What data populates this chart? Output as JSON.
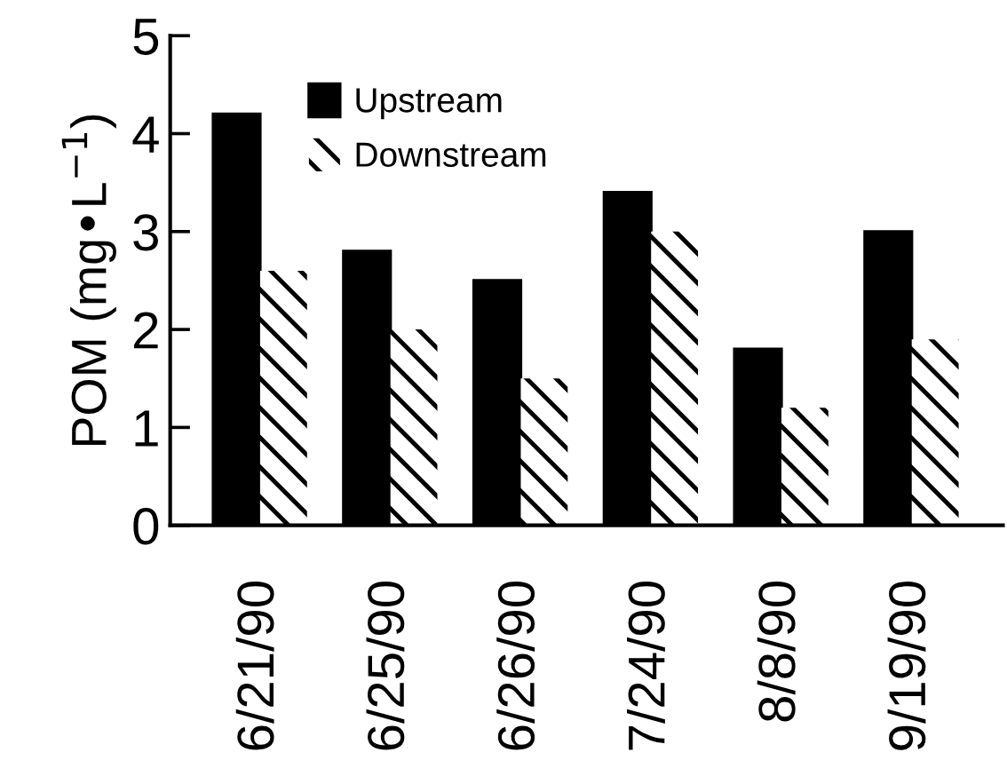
{
  "chart_data": {
    "type": "bar",
    "ylabel": "POM (mg•L$^{−1}$)",
    "categories": [
      "6/21/90",
      "6/25/90",
      "6/26/90",
      "7/24/90",
      "8/8/90",
      "9/19/90"
    ],
    "series": [
      {
        "name": "Upstream",
        "color": "#000000",
        "values": [
          4.2,
          2.8,
          2.5,
          3.4,
          1.8,
          3.0
        ]
      },
      {
        "name": "Downstream",
        "color": "#ffffff",
        "values": [
          2.6,
          2.0,
          1.5,
          3.0,
          1.2,
          1.9
        ]
      }
    ],
    "ylim": [
      0,
      5
    ],
    "yticks": [
      0,
      1,
      2,
      3,
      4,
      5
    ],
    "legend": "top left"
  }
}
